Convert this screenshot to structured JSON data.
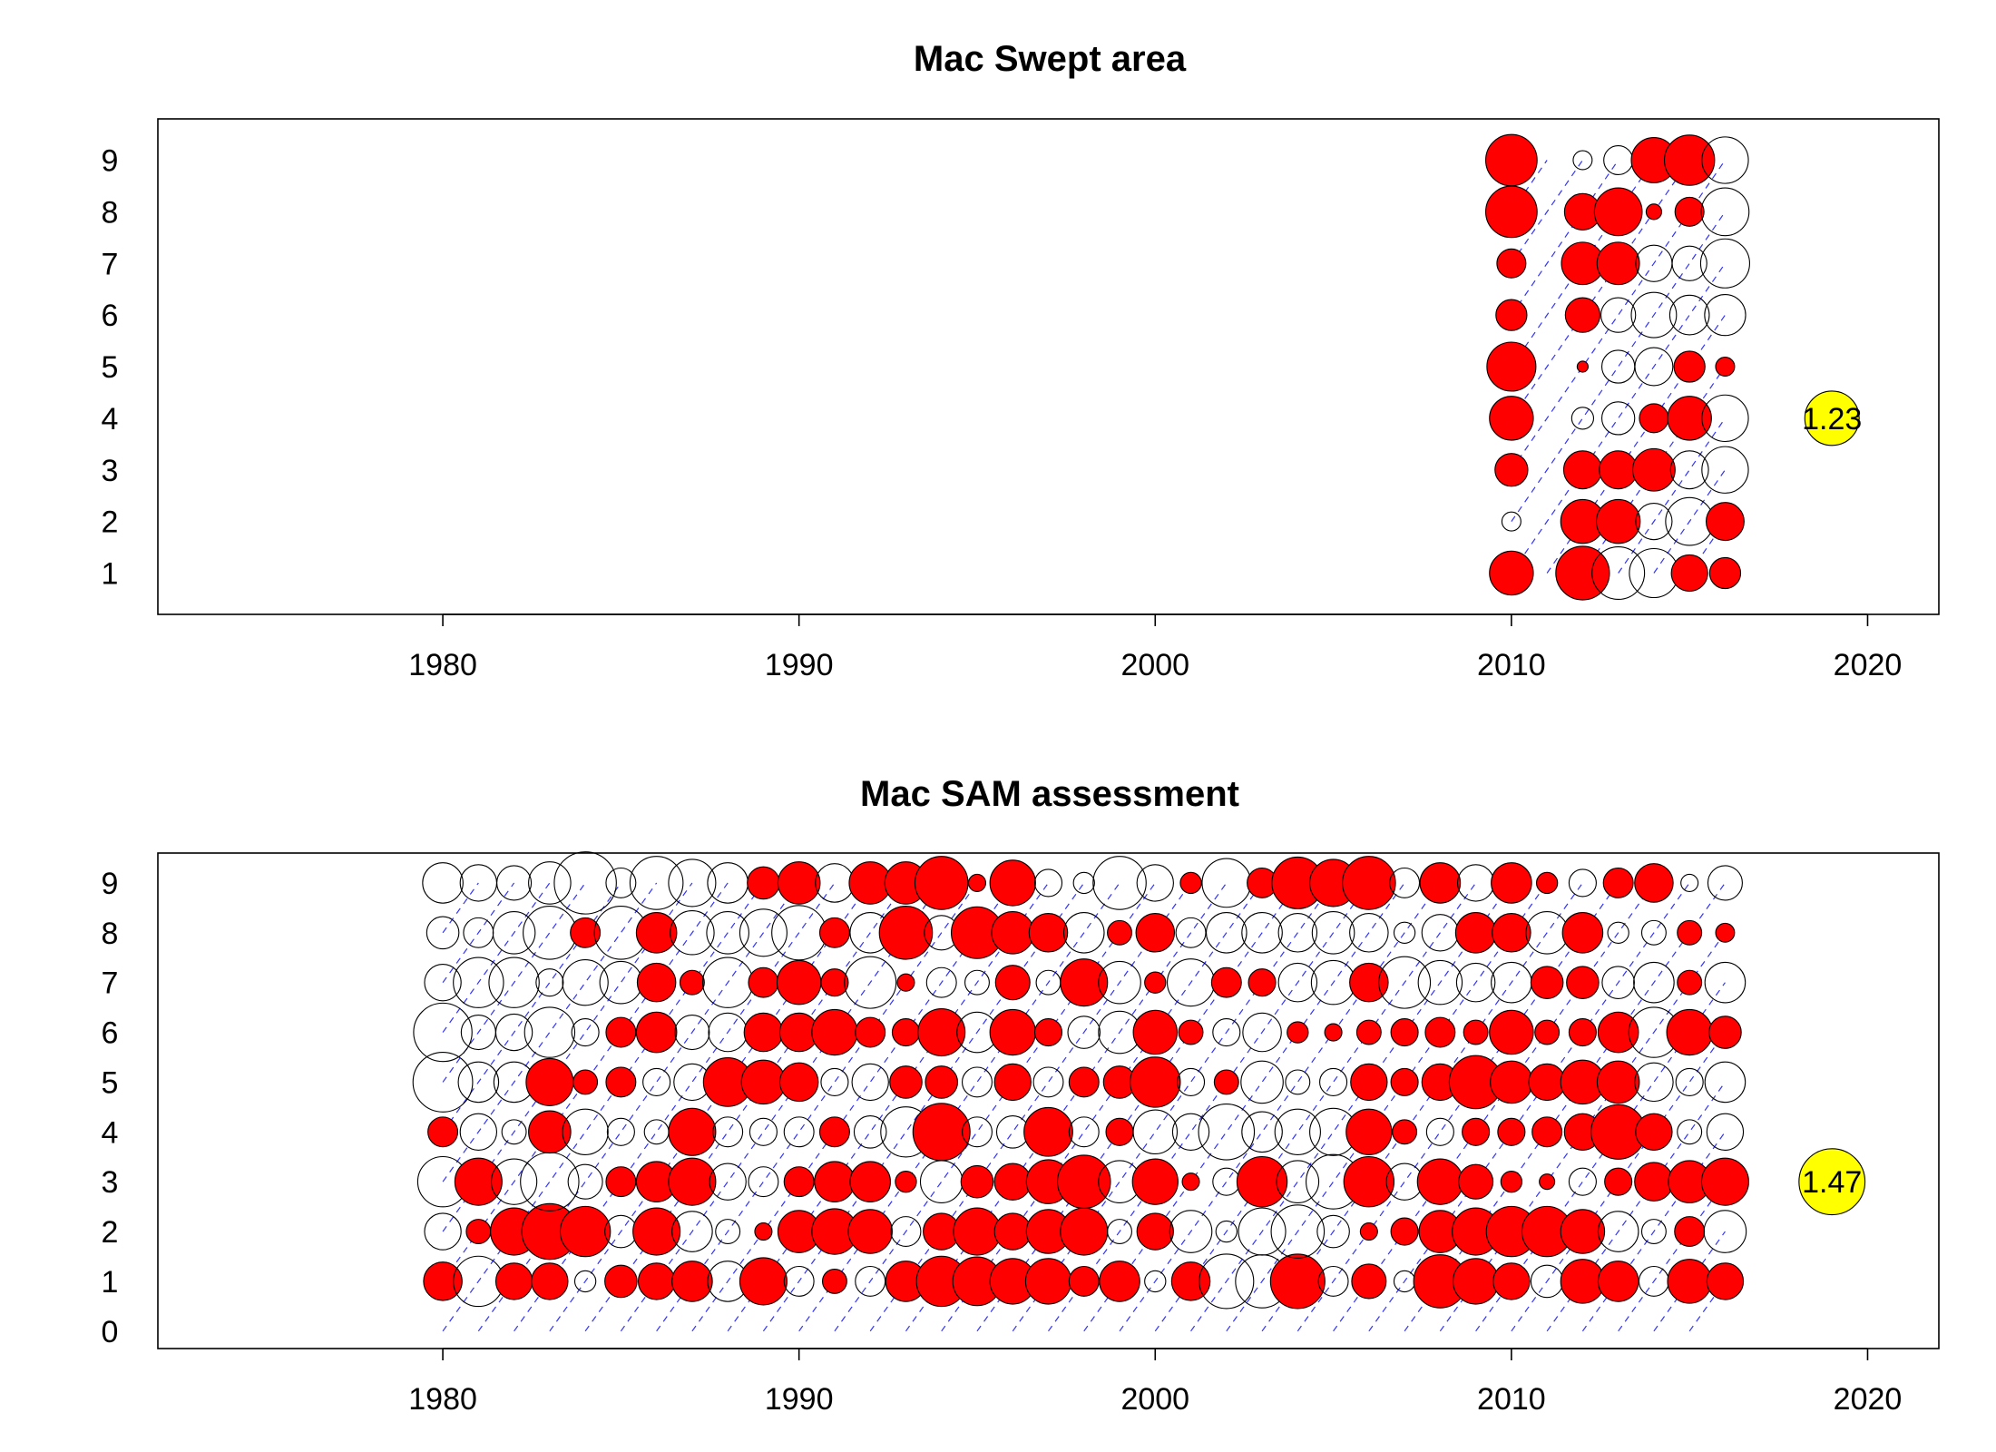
{
  "chart_data": [
    {
      "type": "scatter",
      "title": "Mac Swept area",
      "x_ticks": [
        1980,
        1990,
        2000,
        2010,
        2020
      ],
      "y_ticks": [
        1,
        2,
        3,
        4,
        5,
        6,
        7,
        8,
        9
      ],
      "xlim": [
        1972,
        2022
      ],
      "ylim": [
        0.2,
        9.8
      ],
      "key": {
        "value": 1.23,
        "label": "1.23",
        "x": 2019,
        "age": 4
      },
      "colors": {
        "positive": "#ff0000",
        "negative": "none",
        "key": "#ffff00",
        "cohort_line": "#3333ff"
      },
      "cohort_years": [
        2010,
        2012,
        2013,
        2014,
        2015,
        2016
      ],
      "ages": [
        1,
        2,
        3,
        4,
        5,
        6,
        7,
        8,
        9
      ],
      "residuals": {
        "2010": [
          0.8,
          -0.15,
          0.45,
          0.8,
          1.0,
          0.4,
          0.35,
          1.1,
          1.1
        ],
        "2012": [
          1.2,
          0.8,
          0.6,
          -0.2,
          0.05,
          0.5,
          0.75,
          0.55,
          -0.15
        ],
        "2013": [
          -1.15,
          0.8,
          0.6,
          -0.45,
          -0.45,
          -0.5,
          0.75,
          0.95,
          -0.35
        ],
        "2014": [
          -1.0,
          -0.55,
          0.75,
          0.35,
          -0.6,
          -0.85,
          -0.55,
          0.1,
          0.85
        ],
        "2015": [
          0.55,
          -0.95,
          -0.6,
          0.8,
          0.4,
          -0.65,
          -0.5,
          0.35,
          1.05
        ],
        "2016": [
          0.4,
          0.6,
          -0.9,
          -0.9,
          0.15,
          -0.7,
          -1.0,
          -0.95,
          -0.9
        ]
      }
    },
    {
      "type": "scatter",
      "title": "Mac SAM assessment",
      "x_ticks": [
        1980,
        1990,
        2000,
        2010,
        2020
      ],
      "y_ticks": [
        0,
        1,
        2,
        3,
        4,
        5,
        6,
        7,
        8,
        9
      ],
      "xlim": [
        1972,
        2022
      ],
      "ylim": [
        -0.35,
        9.6
      ],
      "key": {
        "value": 1.47,
        "label": "1.47",
        "x": 2019,
        "age": 3
      },
      "colors": {
        "positive": "#ff0000",
        "negative": "none",
        "key": "#ffff00",
        "cohort_line": "#3333ff"
      },
      "cohort_years": [
        1980,
        1981,
        1982,
        1983,
        1984,
        1985,
        1986,
        1987,
        1988,
        1989,
        1990,
        1991,
        1992,
        1993,
        1994,
        1995,
        1996,
        1997,
        1998,
        1999,
        2000,
        2001,
        2002,
        2003,
        2004,
        2005,
        2006,
        2007,
        2008,
        2009,
        2010,
        2011,
        2012,
        2013,
        2014,
        2015,
        2016
      ],
      "ages": [
        1,
        2,
        3,
        4,
        5,
        6,
        7,
        8,
        9
      ],
      "residuals": {
        "1980": [
          0.5,
          -0.45,
          -0.85,
          0.3,
          -1.2,
          -1.15,
          -0.45,
          -0.35,
          -0.55
        ],
        "1981": [
          -0.85,
          0.2,
          0.75,
          -0.45,
          -0.55,
          -0.4,
          -0.85,
          -0.3,
          -0.45
        ],
        "1982": [
          0.45,
          0.75,
          -0.7,
          -0.2,
          -0.55,
          -0.45,
          -0.85,
          -0.6,
          -0.4
        ],
        "1983": [
          0.45,
          1.05,
          -1.15,
          0.6,
          0.75,
          -0.85,
          -0.25,
          -0.95,
          -0.6
        ],
        "1984": [
          -0.15,
          0.85,
          -0.4,
          -0.7,
          0.2,
          -0.25,
          -0.7,
          0.3,
          -1.3
        ],
        "1985": [
          0.35,
          -0.35,
          0.3,
          -0.25,
          0.3,
          0.3,
          -0.6,
          -0.95,
          -0.3
        ],
        "1986": [
          0.45,
          0.75,
          0.55,
          -0.2,
          -0.25,
          0.55,
          0.5,
          0.55,
          -0.95
        ],
        "1987": [
          0.55,
          -0.55,
          0.75,
          0.75,
          -0.45,
          -0.4,
          0.2,
          -0.65,
          -0.75
        ],
        "1988": [
          -0.55,
          -0.2,
          -0.45,
          -0.3,
          0.8,
          -0.5,
          -0.85,
          -0.6,
          -0.55
        ],
        "1989": [
          0.75,
          0.1,
          -0.3,
          -0.25,
          0.65,
          0.5,
          0.3,
          -0.75,
          0.35
        ],
        "1990": [
          -0.3,
          0.6,
          0.3,
          -0.3,
          0.5,
          0.5,
          0.65,
          -1.0,
          0.6
        ],
        "1991": [
          0.2,
          0.7,
          0.55,
          0.3,
          -0.25,
          0.7,
          0.25,
          0.3,
          -0.5
        ],
        "1992": [
          -0.3,
          0.65,
          0.55,
          -0.35,
          -0.45,
          0.3,
          -0.9,
          -0.55,
          0.6
        ],
        "1993": [
          0.55,
          -0.3,
          0.15,
          -0.85,
          0.35,
          0.25,
          0.1,
          0.95,
          0.6
        ],
        "1994": [
          0.85,
          0.45,
          -0.6,
          1.1,
          0.35,
          0.75,
          -0.3,
          -0.4,
          0.95
        ],
        "1995": [
          0.8,
          0.75,
          0.35,
          -0.3,
          -0.3,
          -0.55,
          -0.2,
          0.9,
          0.1
        ],
        "1996": [
          0.7,
          0.45,
          0.45,
          -0.35,
          0.45,
          0.7,
          0.4,
          0.6,
          0.7
        ],
        "1997": [
          0.7,
          0.65,
          0.65,
          0.8,
          -0.3,
          0.25,
          -0.2,
          0.5,
          -0.25
        ],
        "1998": [
          0.3,
          0.75,
          0.95,
          -0.3,
          0.3,
          -0.35,
          0.75,
          -0.55,
          -0.15
        ],
        "1999": [
          0.55,
          -0.2,
          -0.6,
          0.25,
          0.35,
          -0.6,
          -0.6,
          0.2,
          -0.95
        ],
        "2000": [
          -0.15,
          0.45,
          0.7,
          -0.65,
          0.85,
          0.65,
          0.15,
          0.5,
          -0.45
        ],
        "2001": [
          0.5,
          -0.6,
          0.1,
          -0.45,
          -0.25,
          0.2,
          -0.75,
          -0.3,
          0.15
        ],
        "2002": [
          -1.0,
          -0.15,
          -0.25,
          -1.05,
          0.2,
          -0.25,
          0.3,
          -0.55,
          -0.8
        ],
        "2003": [
          -0.95,
          -0.75,
          0.85,
          -0.55,
          -0.6,
          -0.5,
          0.25,
          -0.55,
          0.3
        ],
        "2004": [
          1.0,
          -0.95,
          -0.6,
          -0.7,
          -0.2,
          0.15,
          -0.5,
          -0.5,
          0.9
        ],
        "2005": [
          -0.3,
          -0.35,
          -1.0,
          -0.75,
          -0.25,
          0.1,
          -0.65,
          -0.6,
          0.75
        ],
        "2006": [
          0.4,
          0.1,
          0.85,
          0.7,
          0.45,
          0.2,
          0.5,
          -0.5,
          0.95
        ],
        "2007": [
          -0.15,
          0.25,
          -0.45,
          0.2,
          0.25,
          0.25,
          -0.9,
          -0.15,
          -0.3
        ],
        "2008": [
          0.95,
          0.6,
          0.7,
          -0.25,
          0.45,
          0.3,
          -0.65,
          -0.45,
          0.55
        ],
        "2009": [
          0.7,
          0.75,
          0.4,
          0.25,
          0.95,
          0.2,
          -0.5,
          0.55,
          -0.45
        ],
        "2010": [
          0.45,
          0.85,
          0.15,
          0.25,
          0.6,
          0.65,
          -0.55,
          0.5,
          0.55
        ],
        "2011": [
          -0.35,
          0.85,
          0.08,
          0.3,
          0.45,
          0.2,
          0.35,
          -0.6,
          0.15
        ],
        "2012": [
          0.65,
          0.65,
          -0.25,
          0.45,
          0.65,
          0.25,
          0.35,
          0.55,
          -0.25
        ],
        "2013": [
          0.55,
          -0.55,
          0.25,
          1.0,
          0.6,
          0.55,
          -0.35,
          -0.15,
          0.3
        ],
        "2014": [
          -0.3,
          -0.2,
          0.5,
          0.45,
          -0.5,
          -0.85,
          -0.55,
          -0.2,
          0.5
        ],
        "2015": [
          0.65,
          0.3,
          0.6,
          -0.2,
          -0.25,
          0.7,
          0.2,
          0.2,
          -0.1
        ],
        "2016": [
          0.45,
          -0.6,
          0.75,
          -0.45,
          -0.55,
          0.35,
          -0.55,
          0.12,
          -0.4
        ]
      }
    }
  ]
}
